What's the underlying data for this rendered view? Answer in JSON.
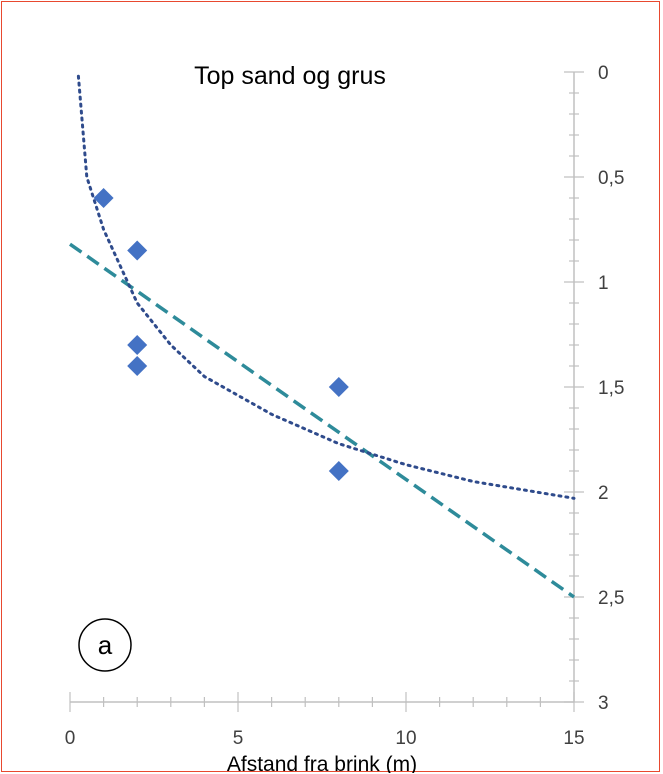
{
  "chart_data": {
    "type": "scatter",
    "title": "Top sand og grus",
    "xlabel": "Afstand fra brink (m)",
    "ylabel": "",
    "xlim": [
      0,
      15
    ],
    "ylim": [
      0,
      3
    ],
    "y_axis_reversed": true,
    "y_axis_position": "right",
    "x_ticks": [
      "0",
      "5",
      "10",
      "15"
    ],
    "y_ticks": [
      "0",
      "0,5",
      "1",
      "1,5",
      "2",
      "2,5",
      "3"
    ],
    "series": [
      {
        "marker": "diamond",
        "color": "#4472c4",
        "x": [
          1,
          2,
          2,
          2,
          8,
          8
        ],
        "y": [
          0.6,
          0.85,
          1.3,
          1.4,
          1.5,
          1.9
        ]
      }
    ],
    "trendlines": [
      {
        "kind": "linear",
        "style": "dashed",
        "color": "#2e8b9a",
        "x": [
          0,
          15
        ],
        "y": [
          0.82,
          2.5
        ]
      },
      {
        "kind": "logarithmic",
        "style": "dotted",
        "color": "#2f4b8c",
        "x": [
          0.25,
          0.5,
          1,
          2,
          3,
          4,
          6,
          8,
          10,
          12,
          15
        ],
        "y": [
          0.02,
          0.5,
          0.75,
          1.1,
          1.3,
          1.45,
          1.63,
          1.77,
          1.87,
          1.95,
          2.03
        ]
      }
    ],
    "annotation": "a",
    "grid": false,
    "legend": "none"
  }
}
